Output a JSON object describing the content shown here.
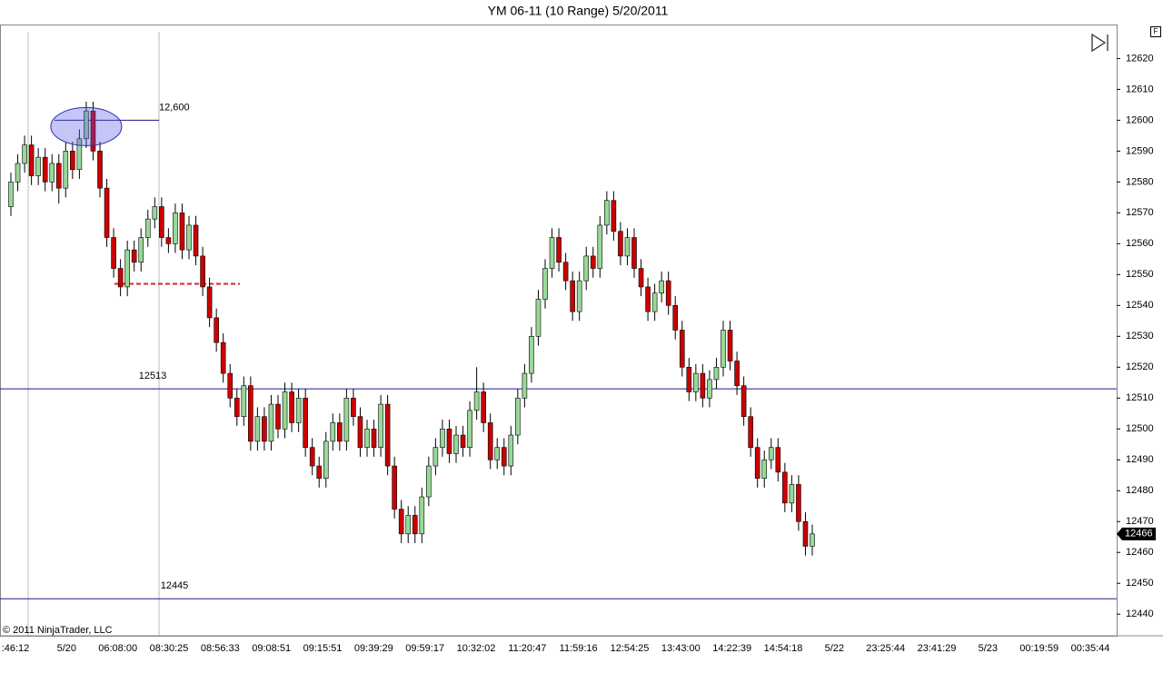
{
  "chart_data": {
    "type": "candlestick",
    "title": "YM 06-11 (10 Range)  5/20/2011",
    "ylim": [
      12433,
      12631
    ],
    "yticks": [
      12440,
      12450,
      12460,
      12470,
      12480,
      12490,
      12500,
      12510,
      12520,
      12530,
      12540,
      12550,
      12560,
      12570,
      12580,
      12590,
      12600,
      12610,
      12620
    ],
    "up_color": "#98d898",
    "down_color": "#cc0000",
    "x_labels": [
      ":46:12",
      "5/20",
      "06:08:00",
      "08:30:25",
      "08:56:33",
      "09:08:51",
      "09:15:51",
      "09:39:29",
      "09:59:17",
      "10:32:02",
      "11:20:47",
      "11:59:16",
      "12:54:25",
      "13:43:00",
      "14:22:39",
      "14:54:18",
      "5/22",
      "23:25:44",
      "23:41:29",
      "5/23",
      "00:19:59",
      "00:35:44"
    ],
    "levels": [
      {
        "value": 12600,
        "label": "12,600"
      },
      12513,
      12445
    ],
    "support_line": 12547,
    "last_price": 12466,
    "copyright": "© 2011 NinjaTrader, LLC",
    "candles": [
      [
        12572,
        12583,
        12569,
        12580
      ],
      [
        12580,
        12589,
        12577,
        12586
      ],
      [
        12586,
        12595,
        12583,
        12592
      ],
      [
        12592,
        12595,
        12579,
        12582
      ],
      [
        12582,
        12591,
        12579,
        12588
      ],
      [
        12588,
        12591,
        12577,
        12580
      ],
      [
        12580,
        12589,
        12577,
        12586
      ],
      [
        12586,
        12589,
        12573,
        12578
      ],
      [
        12578,
        12593,
        12575,
        12590
      ],
      [
        12590,
        12593,
        12581,
        12584
      ],
      [
        12584,
        12597,
        12581,
        12594
      ],
      [
        12594,
        12606,
        12591,
        12603
      ],
      [
        12603,
        12606,
        12587,
        12590
      ],
      [
        12590,
        12593,
        12575,
        12578
      ],
      [
        12578,
        12581,
        12559,
        12562
      ],
      [
        12562,
        12565,
        12549,
        12552
      ],
      [
        12552,
        12555,
        12543,
        12546
      ],
      [
        12546,
        12561,
        12543,
        12558
      ],
      [
        12558,
        12561,
        12551,
        12554
      ],
      [
        12554,
        12565,
        12551,
        12562
      ],
      [
        12562,
        12571,
        12559,
        12568
      ],
      [
        12568,
        12575,
        12565,
        12572
      ],
      [
        12572,
        12575,
        12559,
        12562
      ],
      [
        12562,
        12565,
        12557,
        12560
      ],
      [
        12560,
        12573,
        12557,
        12570
      ],
      [
        12570,
        12573,
        12555,
        12558
      ],
      [
        12558,
        12569,
        12555,
        12566
      ],
      [
        12566,
        12569,
        12553,
        12556
      ],
      [
        12556,
        12559,
        12543,
        12546
      ],
      [
        12546,
        12549,
        12533,
        12536
      ],
      [
        12536,
        12539,
        12525,
        12528
      ],
      [
        12528,
        12531,
        12515,
        12518
      ],
      [
        12518,
        12521,
        12507,
        12510
      ],
      [
        12510,
        12513,
        12501,
        12504
      ],
      [
        12504,
        12517,
        12501,
        12514
      ],
      [
        12514,
        12517,
        12493,
        12496
      ],
      [
        12496,
        12507,
        12493,
        12504
      ],
      [
        12504,
        12507,
        12493,
        12496
      ],
      [
        12496,
        12511,
        12493,
        12508
      ],
      [
        12508,
        12511,
        12497,
        12500
      ],
      [
        12500,
        12515,
        12497,
        12512
      ],
      [
        12512,
        12515,
        12499,
        12502
      ],
      [
        12502,
        12513,
        12499,
        12510
      ],
      [
        12510,
        12513,
        12491,
        12494
      ],
      [
        12494,
        12497,
        12485,
        12488
      ],
      [
        12488,
        12491,
        12481,
        12484
      ],
      [
        12484,
        12499,
        12481,
        12496
      ],
      [
        12496,
        12505,
        12493,
        12502
      ],
      [
        12502,
        12505,
        12493,
        12496
      ],
      [
        12496,
        12513,
        12493,
        12510
      ],
      [
        12510,
        12513,
        12501,
        12504
      ],
      [
        12504,
        12507,
        12491,
        12494
      ],
      [
        12494,
        12503,
        12491,
        12500
      ],
      [
        12500,
        12503,
        12491,
        12494
      ],
      [
        12494,
        12511,
        12491,
        12508
      ],
      [
        12508,
        12511,
        12485,
        12488
      ],
      [
        12488,
        12491,
        12471,
        12474
      ],
      [
        12474,
        12477,
        12463,
        12466
      ],
      [
        12466,
        12475,
        12463,
        12472
      ],
      [
        12472,
        12475,
        12463,
        12466
      ],
      [
        12466,
        12481,
        12463,
        12478
      ],
      [
        12478,
        12491,
        12475,
        12488
      ],
      [
        12488,
        12497,
        12485,
        12494
      ],
      [
        12494,
        12503,
        12491,
        12500
      ],
      [
        12500,
        12503,
        12489,
        12492
      ],
      [
        12492,
        12501,
        12489,
        12498
      ],
      [
        12498,
        12501,
        12491,
        12494
      ],
      [
        12494,
        12509,
        12491,
        12506
      ],
      [
        12506,
        12520,
        12503,
        12512
      ],
      [
        12512,
        12515,
        12499,
        12502
      ],
      [
        12502,
        12505,
        12487,
        12490
      ],
      [
        12490,
        12497,
        12487,
        12494
      ],
      [
        12494,
        12497,
        12485,
        12488
      ],
      [
        12488,
        12501,
        12485,
        12498
      ],
      [
        12498,
        12513,
        12495,
        12510
      ],
      [
        12510,
        12521,
        12507,
        12518
      ],
      [
        12518,
        12533,
        12515,
        12530
      ],
      [
        12530,
        12545,
        12527,
        12542
      ],
      [
        12542,
        12555,
        12539,
        12552
      ],
      [
        12552,
        12565,
        12549,
        12562
      ],
      [
        12562,
        12565,
        12551,
        12554
      ],
      [
        12554,
        12557,
        12545,
        12548
      ],
      [
        12548,
        12551,
        12535,
        12538
      ],
      [
        12538,
        12551,
        12535,
        12548
      ],
      [
        12548,
        12559,
        12545,
        12556
      ],
      [
        12556,
        12559,
        12549,
        12552
      ],
      [
        12552,
        12569,
        12549,
        12566
      ],
      [
        12566,
        12577,
        12563,
        12574
      ],
      [
        12574,
        12577,
        12561,
        12564
      ],
      [
        12564,
        12567,
        12553,
        12556
      ],
      [
        12556,
        12565,
        12553,
        12562
      ],
      [
        12562,
        12565,
        12549,
        12552
      ],
      [
        12552,
        12555,
        12543,
        12546
      ],
      [
        12546,
        12549,
        12535,
        12538
      ],
      [
        12538,
        12547,
        12535,
        12544
      ],
      [
        12544,
        12551,
        12541,
        12548
      ],
      [
        12548,
        12551,
        12537,
        12540
      ],
      [
        12540,
        12543,
        12529,
        12532
      ],
      [
        12532,
        12535,
        12517,
        12520
      ],
      [
        12520,
        12523,
        12509,
        12512
      ],
      [
        12512,
        12521,
        12509,
        12518
      ],
      [
        12518,
        12521,
        12507,
        12510
      ],
      [
        12510,
        12519,
        12507,
        12516
      ],
      [
        12516,
        12523,
        12513,
        12520
      ],
      [
        12520,
        12535,
        12517,
        12532
      ],
      [
        12532,
        12535,
        12519,
        12522
      ],
      [
        12522,
        12525,
        12511,
        12514
      ],
      [
        12514,
        12517,
        12501,
        12504
      ],
      [
        12504,
        12507,
        12491,
        12494
      ],
      [
        12494,
        12497,
        12481,
        12484
      ],
      [
        12484,
        12493,
        12481,
        12490
      ],
      [
        12490,
        12497,
        12487,
        12494
      ],
      [
        12494,
        12497,
        12483,
        12486
      ],
      [
        12486,
        12489,
        12473,
        12476
      ],
      [
        12476,
        12485,
        12473,
        12482
      ],
      [
        12482,
        12485,
        12467,
        12470
      ],
      [
        12470,
        12473,
        12459,
        12462
      ],
      [
        12462,
        12469,
        12459,
        12466
      ]
    ]
  }
}
